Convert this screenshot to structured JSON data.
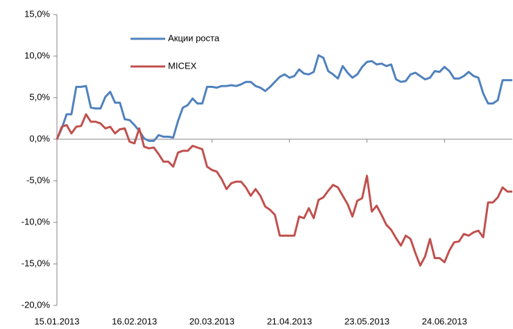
{
  "chart_data": {
    "type": "line",
    "categories": [
      "15.01.2013",
      null,
      null,
      null,
      null,
      null,
      null,
      null,
      null,
      null,
      null,
      null,
      null,
      null,
      null,
      null,
      "16.02.2013",
      null,
      null,
      null,
      null,
      null,
      null,
      null,
      null,
      null,
      null,
      null,
      null,
      null,
      null,
      null,
      "20.03.2013",
      null,
      null,
      null,
      null,
      null,
      null,
      null,
      null,
      null,
      null,
      null,
      null,
      null,
      null,
      null,
      "21.04.2013",
      null,
      null,
      null,
      null,
      null,
      null,
      null,
      null,
      null,
      null,
      null,
      null,
      null,
      null,
      null,
      "23.05.2013",
      null,
      null,
      null,
      null,
      null,
      null,
      null,
      null,
      null,
      null,
      null,
      null,
      null,
      null,
      null,
      "24.06.2013",
      null,
      null,
      null,
      null,
      null,
      null,
      null,
      null,
      null,
      null,
      null,
      null,
      null,
      null
    ],
    "series": [
      {
        "name": "Акции роста",
        "color": "#4f81bd",
        "values": [
          0,
          1.3,
          3.0,
          3.0,
          6.3,
          6.3,
          6.4,
          3.8,
          3.7,
          3.7,
          5.1,
          5.7,
          4.4,
          4.4,
          2.4,
          2.3,
          1.7,
          1.0,
          0.1,
          -0.2,
          -0.2,
          0.5,
          0.3,
          0.3,
          0.2,
          2.2,
          3.8,
          4.1,
          4.9,
          4.3,
          4.3,
          6.3,
          6.3,
          6.2,
          6.4,
          6.4,
          6.5,
          6.4,
          6.6,
          6.9,
          6.9,
          6.4,
          6.2,
          5.8,
          6.3,
          6.9,
          7.5,
          7.8,
          7.4,
          7.6,
          8.4,
          7.9,
          7.8,
          8.1,
          10.1,
          9.8,
          8.2,
          7.8,
          7.3,
          8.8,
          8.0,
          7.4,
          7.8,
          8.7,
          9.3,
          9.4,
          9.0,
          9.1,
          8.8,
          9.0,
          7.2,
          6.9,
          7.0,
          7.8,
          8.0,
          7.6,
          7.2,
          7.4,
          8.2,
          8.1,
          8.7,
          8.2,
          7.3,
          7.3,
          7.6,
          8.1,
          7.6,
          7.4,
          5.5,
          4.3,
          4.3,
          4.7,
          7.1,
          7.1,
          7.1
        ]
      },
      {
        "name": "MICEX",
        "color": "#c0504d",
        "values": [
          0,
          1.5,
          1.7,
          0.7,
          1.5,
          1.6,
          3.0,
          2.1,
          2.1,
          1.9,
          1.3,
          1.5,
          0.7,
          1.2,
          1.3,
          -0.3,
          -0.5,
          1.3,
          -0.9,
          -1.1,
          -1.0,
          -1.8,
          -2.7,
          -2.7,
          -3.3,
          -1.6,
          -1.4,
          -1.4,
          -0.8,
          -1.0,
          -1.2,
          -3.3,
          -3.7,
          -3.9,
          -4.8,
          -6.0,
          -5.3,
          -5.1,
          -5.1,
          -5.8,
          -6.8,
          -6.0,
          -6.8,
          -8.1,
          -8.5,
          -9.1,
          -11.6,
          -11.6,
          -11.6,
          -11.6,
          -9.3,
          -9.5,
          -8.3,
          -9.5,
          -7.3,
          -7.0,
          -6.2,
          -5.5,
          -5.8,
          -6.8,
          -7.8,
          -9.3,
          -7.4,
          -7.1,
          -4.4,
          -8.7,
          -8.0,
          -9.1,
          -10.3,
          -10.9,
          -11.9,
          -12.8,
          -11.6,
          -12.0,
          -13.7,
          -15.2,
          -14.1,
          -12.0,
          -14.3,
          -14.3,
          -14.8,
          -13.4,
          -12.4,
          -12.3,
          -11.4,
          -11.6,
          -11.2,
          -11.0,
          -11.8,
          -7.6,
          -7.6,
          -7.0,
          -5.8,
          -6.3,
          -6.3
        ]
      }
    ],
    "ylim": [
      -20,
      15
    ],
    "yticks": [
      {
        "value": -20,
        "label": "-20,0%"
      },
      {
        "value": -15,
        "label": "-15,0%"
      },
      {
        "value": -10,
        "label": "-10,0%"
      },
      {
        "value": -5,
        "label": "-5,0%"
      },
      {
        "value": 0,
        "label": "0,0%"
      },
      {
        "value": 5,
        "label": "5,0%"
      },
      {
        "value": 10,
        "label": "10,0%"
      },
      {
        "value": 15,
        "label": "15,0%"
      }
    ]
  }
}
